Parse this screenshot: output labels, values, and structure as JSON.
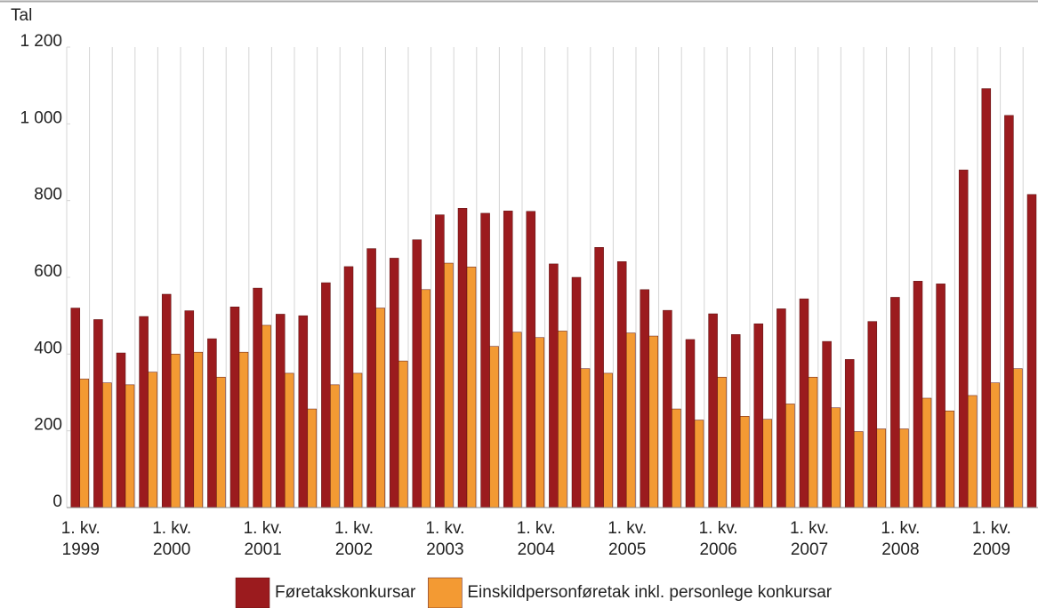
{
  "chart_data": {
    "type": "bar",
    "y_label": "Tal",
    "categories": [
      "1. kv. 1999",
      null,
      null,
      null,
      "1. kv. 2000",
      null,
      null,
      null,
      "1. kv. 2001",
      null,
      null,
      null,
      "1. kv. 2002",
      null,
      null,
      null,
      "1. kv. 2003",
      null,
      null,
      null,
      "1. kv. 2004",
      null,
      null,
      null,
      "1. kv. 2005",
      null,
      null,
      null,
      "1. kv. 2006",
      null,
      null,
      null,
      "1. kv. 2007",
      null,
      null,
      null,
      "1. kv. 2008",
      null,
      null,
      null,
      "1. kv. 2009",
      null,
      null
    ],
    "series": [
      {
        "name": "Føretakskonkursar",
        "color": "#9b1b1e",
        "values": [
          520,
          490,
          403,
          498,
          556,
          513,
          440,
          523,
          572,
          504,
          500,
          586,
          628,
          675,
          650,
          698,
          763,
          780,
          767,
          773,
          772,
          635,
          600,
          678,
          641,
          568,
          514,
          438,
          505,
          451,
          479,
          518,
          544,
          433,
          386,
          485,
          548,
          590,
          583,
          880,
          1092,
          1022,
          816
        ]
      },
      {
        "name": "Einskildpersonføretak inkl. personlege konkursar",
        "color": "#f39a33",
        "values": [
          335,
          325,
          320,
          353,
          400,
          405,
          340,
          405,
          475,
          350,
          257,
          320,
          350,
          520,
          382,
          568,
          637,
          627,
          420,
          457,
          443,
          460,
          362,
          350,
          455,
          447,
          257,
          228,
          340,
          238,
          230,
          270,
          340,
          260,
          198,
          205,
          205,
          285,
          252,
          292,
          325,
          362,
          null
        ]
      }
    ],
    "ylim": [
      0,
      1200
    ],
    "yticks": [
      0,
      200,
      400,
      600,
      800,
      {
        "value": 1000,
        "label": "1 000"
      },
      {
        "value": 1200,
        "label": "1 200"
      }
    ],
    "grid": true
  }
}
